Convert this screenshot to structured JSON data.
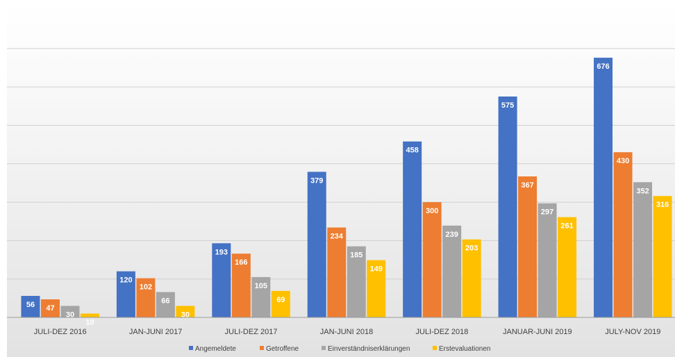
{
  "chart_data": {
    "type": "bar",
    "title": "",
    "xlabel": "",
    "ylabel": "",
    "ylim": [
      0,
      700
    ],
    "grid": true,
    "legend_position": "bottom",
    "categories": [
      "JULI-DEZ 2016",
      "JAN-JUNI 2017",
      "JULI-DEZ 2017",
      "JAN-JUNI 2018",
      "JULI-DEZ 2018",
      "JANUAR-JUNI 2019",
      "JULY-NOV 2019"
    ],
    "series": [
      {
        "name": "Angemeldete",
        "color": "#4472C4",
        "values": [
          56,
          120,
          193,
          379,
          458,
          575,
          676
        ]
      },
      {
        "name": "Getroffene",
        "color": "#ED7D31",
        "values": [
          47,
          102,
          166,
          234,
          300,
          367,
          430
        ]
      },
      {
        "name": "Einverständniserklärungen",
        "color": "#A5A5A5",
        "values": [
          30,
          66,
          105,
          185,
          239,
          297,
          352
        ]
      },
      {
        "name": "Erstevaluationen",
        "color": "#FFC000",
        "values": [
          10,
          30,
          69,
          149,
          203,
          261,
          316
        ]
      }
    ]
  }
}
